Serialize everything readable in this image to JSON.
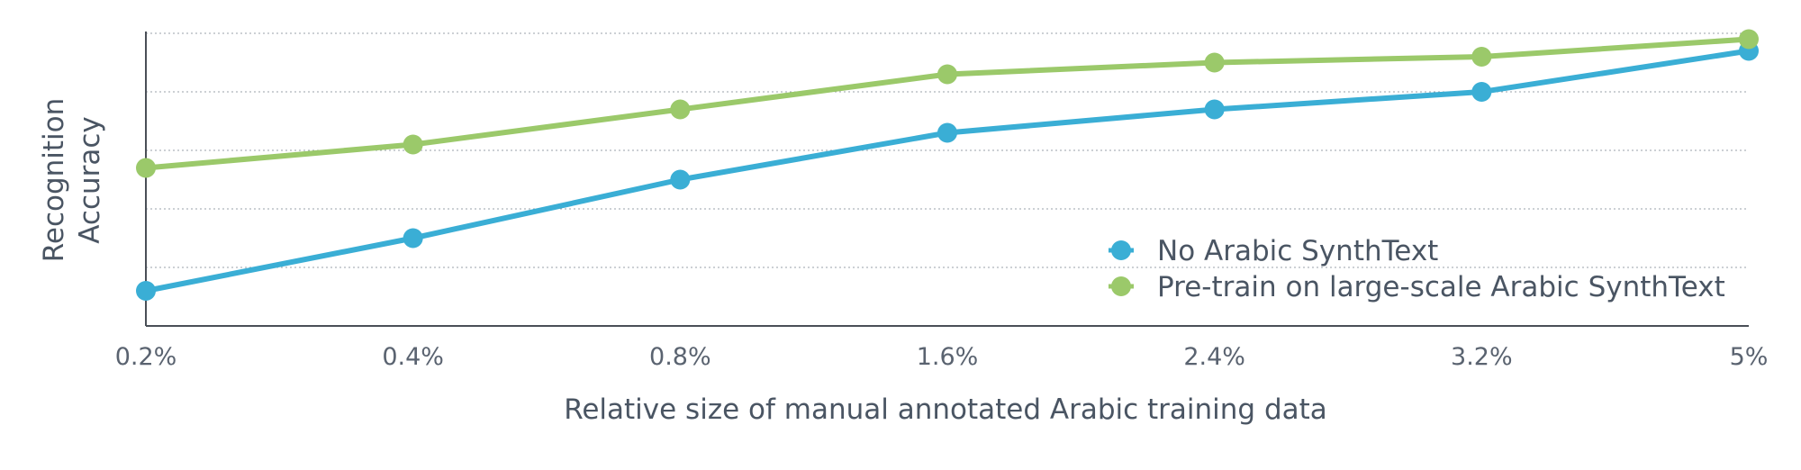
{
  "chart_data": {
    "type": "line",
    "title": "",
    "xlabel": "Relative size of manual annotated Arabic training data",
    "ylabel_lines": [
      "Recognition",
      "Accuracy"
    ],
    "categories": [
      "0.2%",
      "0.4%",
      "0.8%",
      "1.6%",
      "2.4%",
      "3.2%",
      "5%"
    ],
    "ylim": [
      0,
      5
    ],
    "grid": true,
    "legend_position": "bottom-right",
    "series": [
      {
        "name": "No Arabic SynthText",
        "color": "#3aaed5",
        "values": [
          0.6,
          1.5,
          2.5,
          3.3,
          3.7,
          4.0,
          4.7
        ]
      },
      {
        "name": "Pre-train on large-scale Arabic SynthText",
        "color": "#9bc96a",
        "values": [
          2.7,
          3.1,
          3.7,
          4.3,
          4.5,
          4.6,
          4.9
        ]
      }
    ]
  }
}
